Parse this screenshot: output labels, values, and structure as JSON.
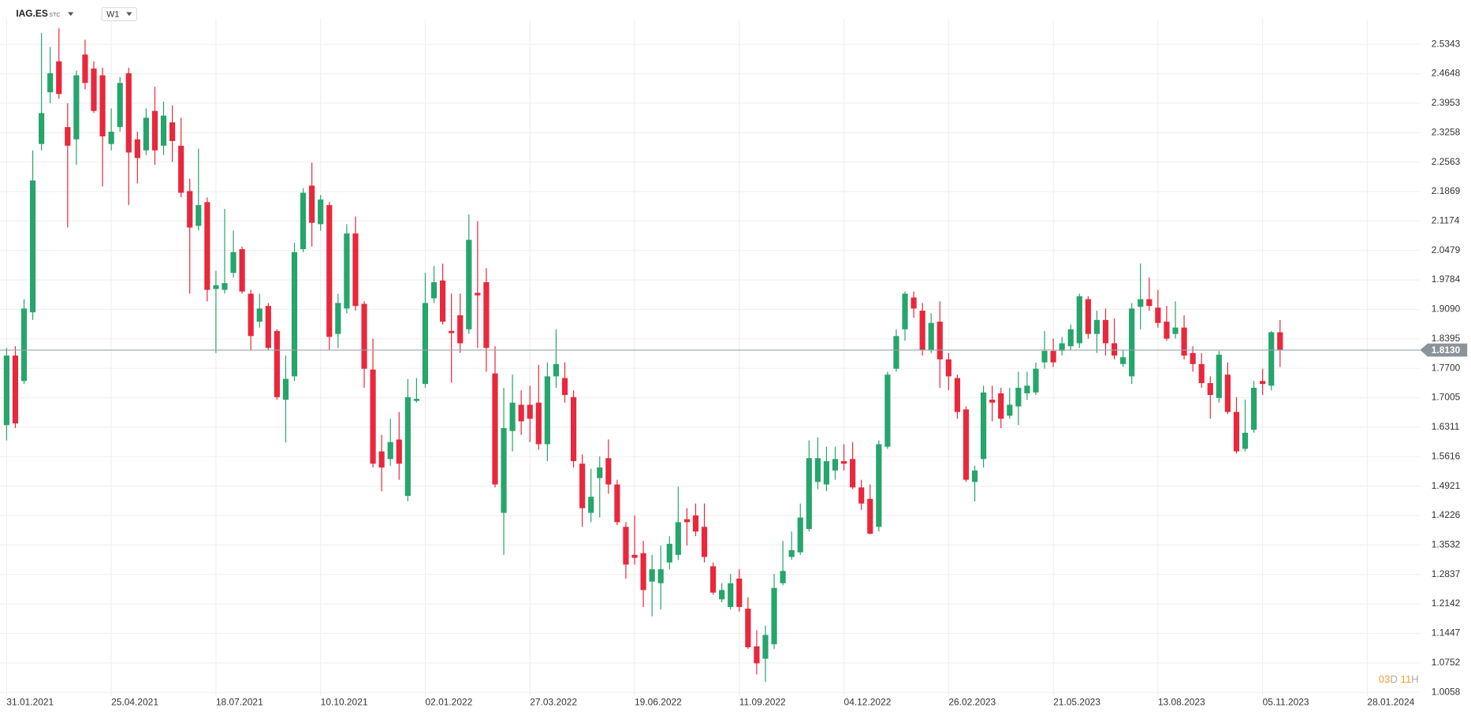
{
  "header": {
    "symbol": "IAG.ES",
    "market": "STC",
    "interval": "W1"
  },
  "chart_data": {
    "type": "candlestick",
    "categories": [
      "31.01.2021",
      null,
      null,
      null,
      null,
      null,
      null,
      null,
      null,
      null,
      null,
      null,
      "25.04.2021",
      null,
      null,
      null,
      null,
      null,
      null,
      null,
      null,
      null,
      null,
      null,
      "18.07.2021",
      null,
      null,
      null,
      null,
      null,
      null,
      null,
      null,
      null,
      null,
      null,
      "10.10.2021",
      null,
      null,
      null,
      null,
      null,
      null,
      null,
      null,
      null,
      null,
      null,
      "02.01.2022",
      null,
      null,
      null,
      null,
      null,
      null,
      null,
      null,
      null,
      null,
      null,
      "27.03.2022",
      null,
      null,
      null,
      null,
      null,
      null,
      null,
      null,
      null,
      null,
      null,
      "19.06.2022",
      null,
      null,
      null,
      null,
      null,
      null,
      null,
      null,
      null,
      null,
      null,
      "11.09.2022",
      null,
      null,
      null,
      null,
      null,
      null,
      null,
      null,
      null,
      null,
      null,
      "04.12.2022",
      null,
      null,
      null,
      null,
      null,
      null,
      null,
      null,
      null,
      null,
      null,
      "26.02.2023",
      null,
      null,
      null,
      null,
      null,
      null,
      null,
      null,
      null,
      null,
      null,
      "21.05.2023",
      null,
      null,
      null,
      null,
      null,
      null,
      null,
      null,
      null,
      null,
      null,
      "13.08.2023",
      null,
      null,
      null,
      null,
      null,
      null,
      null,
      null,
      null,
      null,
      null,
      "05.11.2023",
      null,
      null,
      null,
      null,
      null,
      null,
      null,
      null,
      null,
      null,
      null,
      "28.01.2024"
    ],
    "open": [
      1.636,
      1.8,
      1.74,
      1.902,
      2.299,
      2.421,
      2.494,
      2.339,
      2.31,
      2.51,
      2.477,
      2.461,
      2.299,
      2.339,
      2.466,
      2.31,
      2.284,
      2.377,
      2.295,
      2.35,
      2.295,
      2.188,
      2.106,
      2.162,
      1.957,
      1.955,
      1.995,
      2.051,
      1.946,
      1.88,
      1.917,
      1.858,
      1.696,
      1.751,
      2.051,
      2.201,
      2.11,
      2.155,
      1.851,
      1.911,
      2.088,
      1.922,
      1.767,
      1.574,
      1.556,
      1.602,
      1.469,
      1.693,
      1.733,
      1.935,
      1.977,
      1.858,
      1.895,
      1.862,
      1.948,
      1.973,
      1.758,
      1.429,
      1.622,
      1.684,
      1.684,
      1.689,
      1.591,
      1.751,
      1.747,
      1.702,
      1.545,
      1.429,
      1.511,
      1.558,
      1.496,
      1.396,
      1.33,
      1.334,
      1.267,
      1.263,
      1.312,
      1.33,
      1.414,
      1.423,
      1.396,
      1.303,
      1.225,
      1.207,
      1.274,
      1.203,
      1.114,
      1.085,
      1.119,
      1.263,
      1.325,
      1.336,
      1.391,
      1.502,
      1.496,
      1.529,
      1.551,
      1.556,
      1.489,
      1.462,
      1.396,
      1.585,
      1.769,
      1.862,
      1.937,
      1.906,
      1.813,
      1.88,
      1.791,
      1.747,
      1.673,
      1.502,
      1.556,
      1.696,
      1.711,
      1.658,
      1.68,
      1.711,
      1.713,
      1.784,
      1.811,
      1.811,
      1.822,
      1.829,
      1.933,
      1.851,
      1.884,
      1.829,
      1.78,
      1.751,
      1.915,
      1.933,
      1.913,
      1.88,
      1.851,
      1.866,
      1.806,
      1.78,
      1.735,
      1.7,
      1.755,
      1.667,
      1.58,
      1.625,
      1.74,
      1.729,
      1.855,
      null,
      null,
      null,
      null,
      null,
      null,
      null,
      null,
      null,
      null
    ],
    "high": [
      1.818,
      1.822,
      1.933,
      2.284,
      2.561,
      2.528,
      2.572,
      2.395,
      2.472,
      2.545,
      2.494,
      2.479,
      2.383,
      2.457,
      2.479,
      2.328,
      2.383,
      2.434,
      2.399,
      2.39,
      2.361,
      2.217,
      2.288,
      2.173,
      2.0,
      2.146,
      2.095,
      2.057,
      1.955,
      1.946,
      1.924,
      1.862,
      1.8,
      2.066,
      2.195,
      2.255,
      2.179,
      2.162,
      1.946,
      2.11,
      2.128,
      1.928,
      1.84,
      1.613,
      1.651,
      1.667,
      1.745,
      1.747,
      1.995,
      2.011,
      2.017,
      1.946,
      1.946,
      2.133,
      2.117,
      2.006,
      1.822,
      1.724,
      1.755,
      1.718,
      1.729,
      1.778,
      1.784,
      1.862,
      1.784,
      1.718,
      1.567,
      1.533,
      1.562,
      1.602,
      1.507,
      1.407,
      1.423,
      1.363,
      1.33,
      1.352,
      1.374,
      1.491,
      1.44,
      1.451,
      1.451,
      1.312,
      1.263,
      1.285,
      1.296,
      1.23,
      1.152,
      1.163,
      1.285,
      1.363,
      1.385,
      1.451,
      1.6,
      1.607,
      1.585,
      1.585,
      1.591,
      1.596,
      1.507,
      1.496,
      1.6,
      1.762,
      1.862,
      1.951,
      1.951,
      1.924,
      1.9,
      1.928,
      1.806,
      1.755,
      1.68,
      1.54,
      1.729,
      1.729,
      1.724,
      1.724,
      1.762,
      1.762,
      1.784,
      1.858,
      1.84,
      1.844,
      1.873,
      1.946,
      1.94,
      1.906,
      1.911,
      1.888,
      1.813,
      1.924,
      2.017,
      1.984,
      1.955,
      1.917,
      1.928,
      1.895,
      1.822,
      1.806,
      1.751,
      1.811,
      1.784,
      1.702,
      1.696,
      1.74,
      1.769,
      1.858,
      1.884,
      null,
      null,
      null,
      null,
      null,
      null,
      null,
      null,
      null,
      null
    ],
    "low": [
      1.6,
      1.629,
      1.733,
      1.884,
      2.284,
      2.395,
      2.406,
      2.102,
      2.25,
      2.428,
      2.372,
      2.199,
      2.284,
      2.328,
      2.155,
      2.206,
      2.273,
      2.25,
      2.273,
      2.257,
      2.173,
      1.946,
      2.095,
      1.928,
      1.806,
      1.946,
      1.984,
      1.946,
      1.813,
      1.866,
      1.813,
      1.696,
      1.595,
      1.74,
      2.044,
      2.057,
      2.095,
      1.813,
      1.818,
      1.9,
      1.906,
      1.724,
      1.536,
      1.48,
      1.54,
      1.507,
      1.456,
      1.689,
      1.724,
      1.924,
      1.873,
      1.736,
      1.806,
      1.851,
      1.818,
      1.762,
      1.489,
      1.33,
      1.574,
      1.613,
      1.596,
      1.578,
      1.551,
      1.724,
      1.689,
      1.536,
      1.396,
      1.407,
      1.418,
      1.474,
      1.4,
      1.274,
      1.307,
      1.207,
      1.185,
      1.201,
      1.296,
      1.318,
      1.352,
      1.374,
      1.312,
      1.236,
      1.218,
      1.201,
      1.196,
      1.108,
      1.048,
      1.03,
      1.108,
      1.258,
      1.318,
      1.33,
      1.385,
      1.485,
      1.48,
      1.507,
      1.529,
      1.485,
      1.436,
      1.378,
      1.385,
      1.58,
      1.762,
      1.835,
      1.889,
      1.8,
      1.806,
      1.724,
      1.718,
      1.651,
      1.502,
      1.456,
      1.536,
      1.645,
      1.629,
      1.651,
      1.636,
      1.696,
      1.707,
      1.769,
      1.773,
      1.8,
      1.813,
      1.818,
      1.84,
      1.806,
      1.8,
      1.791,
      1.773,
      1.733,
      1.862,
      1.906,
      1.866,
      1.835,
      1.84,
      1.791,
      1.762,
      1.724,
      1.651,
      1.689,
      1.662,
      1.569,
      1.574,
      1.618,
      1.707,
      1.718,
      1.773,
      null,
      null,
      null,
      null,
      null,
      null,
      null,
      null,
      null,
      null
    ],
    "close": [
      1.8,
      1.64,
      1.911,
      2.213,
      2.372,
      2.466,
      2.417,
      2.295,
      2.461,
      2.443,
      2.377,
      2.317,
      2.328,
      2.443,
      2.279,
      2.266,
      2.361,
      2.284,
      2.366,
      2.306,
      2.184,
      2.102,
      2.155,
      1.955,
      1.966,
      1.971,
      2.044,
      1.951,
      1.846,
      1.911,
      1.818,
      1.702,
      1.745,
      2.044,
      2.184,
      2.113,
      2.168,
      1.844,
      1.924,
      2.088,
      1.917,
      1.769,
      1.545,
      1.536,
      1.596,
      1.545,
      1.702,
      1.698,
      1.924,
      1.973,
      1.88,
      1.853,
      1.829,
      2.073,
      1.942,
      1.818,
      1.496,
      1.629,
      1.689,
      1.645,
      1.651,
      1.591,
      1.751,
      1.78,
      1.707,
      1.551,
      1.44,
      1.467,
      1.536,
      1.496,
      1.407,
      1.307,
      1.323,
      1.247,
      1.296,
      1.296,
      1.356,
      1.407,
      1.407,
      1.385,
      1.325,
      1.241,
      1.247,
      1.263,
      1.207,
      1.112,
      1.074,
      1.141,
      1.252,
      1.292,
      1.341,
      1.418,
      1.558,
      1.558,
      1.551,
      1.556,
      1.545,
      1.489,
      1.451,
      1.38,
      1.591,
      1.755,
      1.846,
      1.946,
      1.911,
      1.813,
      1.877,
      1.791,
      1.751,
      1.667,
      1.507,
      1.529,
      1.713,
      1.689,
      1.651,
      1.684,
      1.724,
      1.729,
      1.769,
      1.811,
      1.784,
      1.829,
      1.862,
      1.94,
      1.851,
      1.884,
      1.829,
      1.8,
      1.796,
      1.911,
      1.933,
      1.917,
      1.877,
      1.84,
      1.866,
      1.8,
      1.78,
      1.735,
      1.707,
      1.802,
      1.667,
      1.574,
      1.618,
      1.724,
      1.733,
      1.855,
      1.813,
      null,
      null,
      null,
      null,
      null,
      null,
      null,
      null,
      null,
      null
    ],
    "up_color": "#26a56c",
    "down_color": "#e8283c",
    "ylim": [
      0.9966,
      2.5943
    ],
    "yticks": [
      2.5343,
      2.4648,
      2.3953,
      2.3258,
      2.2563,
      2.1869,
      2.1174,
      2.0479,
      1.9784,
      {
        "value": 1.909,
        "label": "1.9090"
      },
      1.8395,
      {
        "value": 1.77,
        "label": "1.7700"
      },
      1.7005,
      1.6311,
      1.5616,
      1.4921,
      1.4226,
      1.3532,
      1.2837,
      1.2142,
      1.1447,
      1.0752,
      1.0058
    ],
    "grid": true,
    "current_price": {
      "value": 1.813,
      "label": "1.8130"
    }
  },
  "countdown": {
    "days": "03",
    "day_unit": "D",
    "hours": "11",
    "hour_unit": "H"
  }
}
